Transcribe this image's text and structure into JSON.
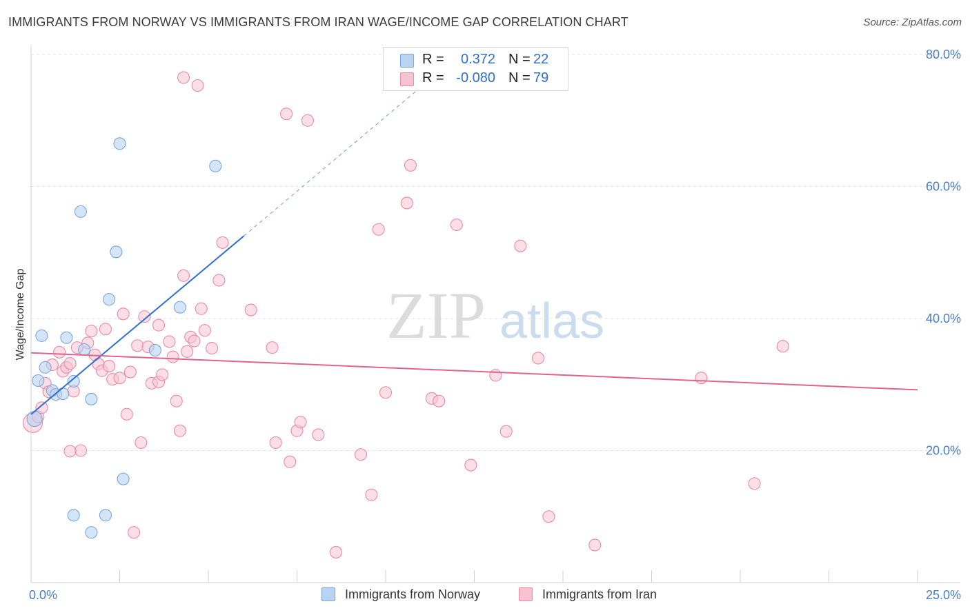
{
  "header": {
    "title": "IMMIGRANTS FROM NORWAY VS IMMIGRANTS FROM IRAN WAGE/INCOME GAP CORRELATION CHART",
    "source": "Source: ZipAtlas.com"
  },
  "watermark": {
    "zip": "ZIP",
    "atlas": "atlas"
  },
  "legend": {
    "rows": [
      {
        "r_label": "R =",
        "r_value": "0.372",
        "n_label": "N =",
        "n_value": "22"
      },
      {
        "r_label": "R =",
        "r_value": "-0.080",
        "n_label": "N =",
        "n_value": "79"
      }
    ]
  },
  "bottom_legend": {
    "items": [
      {
        "label": "Immigrants from Norway"
      },
      {
        "label": "Immigrants from Iran"
      }
    ]
  },
  "colors": {
    "norway_fill": "#b9d3f3",
    "norway_stroke": "#7aa6dd",
    "norway_line": "#2f6fce",
    "iran_fill": "#f7c3d2",
    "iran_stroke": "#e98aa8",
    "iran_line": "#e0638b",
    "grid": "#e3e3e3",
    "tick_label": "#4a7cc7"
  },
  "chart_data": {
    "type": "scatter",
    "ylabel": "Wage/Income Gap",
    "xlabel": "",
    "xlim": [
      0,
      25
    ],
    "ylim": [
      0,
      80
    ],
    "x_tick_labels": [
      {
        "value": 0,
        "label": "0.0%"
      },
      {
        "value": 25,
        "label": "25.0%"
      }
    ],
    "y_tick_labels": [
      {
        "value": 20,
        "label": "20.0%"
      },
      {
        "value": 40,
        "label": "40.0%"
      },
      {
        "value": 60,
        "label": "60.0%"
      },
      {
        "value": 80,
        "label": "80.0%"
      }
    ],
    "series": [
      {
        "name": "Immigrants from Norway",
        "r": 0.372,
        "n": 22,
        "trend": {
          "x0": 0,
          "y0": 25.5,
          "x1": 6.0,
          "y1": 52.5,
          "dashed_to_x": 11.2,
          "dashed_to_y": 76.0
        },
        "points": [
          [
            0.1,
            24.8
          ],
          [
            0.2,
            30.6
          ],
          [
            0.3,
            37.4
          ],
          [
            0.4,
            32.6
          ],
          [
            0.6,
            29.1
          ],
          [
            0.7,
            28.5
          ],
          [
            0.9,
            28.6
          ],
          [
            1.0,
            37.1
          ],
          [
            1.2,
            30.5
          ],
          [
            1.4,
            56.2
          ],
          [
            1.5,
            35.3
          ],
          [
            1.7,
            27.8
          ],
          [
            2.2,
            42.9
          ],
          [
            2.4,
            50.1
          ],
          [
            2.5,
            66.5
          ],
          [
            2.6,
            15.7
          ],
          [
            3.5,
            35.2
          ],
          [
            4.2,
            41.7
          ],
          [
            5.2,
            63.1
          ],
          [
            1.2,
            10.2
          ],
          [
            1.7,
            7.6
          ],
          [
            2.1,
            10.2
          ]
        ]
      },
      {
        "name": "Immigrants from Iran",
        "r": -0.08,
        "n": 79,
        "trend": {
          "x0": 0,
          "y0": 34.8,
          "x1": 25,
          "y1": 29.2
        },
        "points": [
          [
            0.05,
            24.2
          ],
          [
            0.2,
            25.1
          ],
          [
            0.3,
            26.5
          ],
          [
            0.4,
            30.2
          ],
          [
            0.5,
            28.9
          ],
          [
            0.6,
            33.0
          ],
          [
            0.8,
            34.9
          ],
          [
            0.9,
            32.0
          ],
          [
            1.0,
            32.6
          ],
          [
            1.1,
            33.2
          ],
          [
            1.2,
            29.0
          ],
          [
            1.3,
            35.6
          ],
          [
            1.4,
            20.0
          ],
          [
            1.6,
            36.3
          ],
          [
            1.7,
            38.1
          ],
          [
            1.8,
            34.5
          ],
          [
            1.9,
            33.1
          ],
          [
            2.0,
            32.1
          ],
          [
            2.1,
            38.4
          ],
          [
            2.2,
            32.8
          ],
          [
            2.3,
            30.8
          ],
          [
            2.5,
            31.0
          ],
          [
            2.6,
            40.7
          ],
          [
            2.7,
            25.5
          ],
          [
            2.8,
            31.9
          ],
          [
            3.0,
            35.9
          ],
          [
            3.1,
            21.2
          ],
          [
            3.2,
            40.3
          ],
          [
            3.3,
            35.7
          ],
          [
            3.4,
            30.2
          ],
          [
            3.6,
            39.0
          ],
          [
            3.6,
            30.4
          ],
          [
            3.7,
            31.5
          ],
          [
            3.9,
            36.5
          ],
          [
            4.0,
            34.2
          ],
          [
            4.1,
            27.5
          ],
          [
            4.2,
            23.0
          ],
          [
            4.3,
            46.5
          ],
          [
            4.4,
            35.0
          ],
          [
            4.5,
            37.2
          ],
          [
            4.6,
            36.6
          ],
          [
            4.8,
            41.5
          ],
          [
            4.9,
            38.2
          ],
          [
            5.1,
            35.5
          ],
          [
            5.3,
            45.8
          ],
          [
            5.4,
            51.5
          ],
          [
            6.2,
            41.3
          ],
          [
            6.8,
            35.6
          ],
          [
            6.9,
            21.2
          ],
          [
            7.2,
            71.0
          ],
          [
            7.3,
            18.3
          ],
          [
            7.5,
            23.0
          ],
          [
            7.6,
            24.3
          ],
          [
            7.8,
            70.0
          ],
          [
            8.1,
            22.4
          ],
          [
            8.6,
            4.6
          ],
          [
            9.3,
            19.4
          ],
          [
            9.6,
            13.3
          ],
          [
            9.8,
            53.5
          ],
          [
            10.0,
            28.8
          ],
          [
            10.6,
            57.5
          ],
          [
            10.7,
            63.2
          ],
          [
            11.3,
            27.9
          ],
          [
            11.5,
            27.5
          ],
          [
            12.0,
            54.2
          ],
          [
            12.4,
            17.8
          ],
          [
            13.1,
            31.4
          ],
          [
            13.4,
            22.9
          ],
          [
            13.8,
            51.0
          ],
          [
            14.3,
            34.0
          ],
          [
            14.6,
            10.0
          ],
          [
            15.9,
            5.7
          ],
          [
            18.9,
            31.0
          ],
          [
            20.4,
            15.0
          ],
          [
            21.2,
            35.8
          ],
          [
            4.3,
            76.5
          ],
          [
            4.7,
            75.3
          ],
          [
            2.9,
            7.6
          ],
          [
            1.1,
            19.9
          ]
        ]
      }
    ]
  }
}
